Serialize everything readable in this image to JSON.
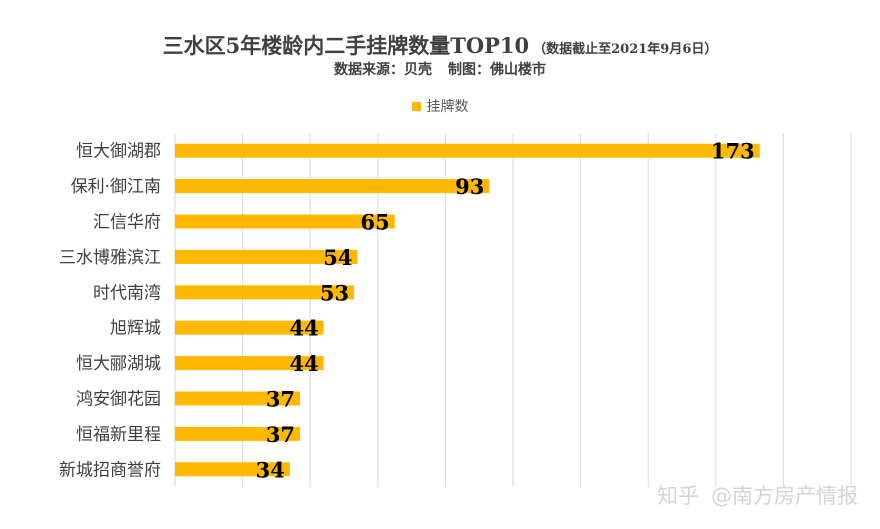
{
  "chart_data": {
    "type": "bar",
    "orientation": "horizontal",
    "title": "三水区5年楼龄内二手挂牌数量TOP10",
    "title_note": "（数据截止至2021年9月6日）",
    "subtitle": {
      "source": "数据来源：贝壳",
      "credit": "制图：佛山楼市"
    },
    "legend": [
      "挂牌数"
    ],
    "legend_position": "top-center",
    "categories": [
      "恒大御湖郡",
      "保利·御江南",
      "汇信华府",
      "三水博雅滨江",
      "时代南湾",
      "旭辉城",
      "恒大郦湖城",
      "鸿安御花园",
      "恒福新里程",
      "新城招商誉府"
    ],
    "series": [
      {
        "name": "挂牌数",
        "values": [
          173,
          93,
          65,
          54,
          53,
          44,
          44,
          37,
          37,
          34
        ]
      }
    ],
    "xlim": [
      0,
      200
    ],
    "x_gridlines": [
      0,
      20,
      40,
      60,
      80,
      100,
      120,
      140,
      160,
      180,
      200
    ],
    "grid": true,
    "xlabel": "",
    "ylabel": ""
  },
  "colors": {
    "bar": "#ffb800",
    "grid": "#d9d9d9",
    "label": "#000000",
    "category": "#404040"
  },
  "watermark": {
    "site": "知乎",
    "author": "@南方房产情报"
  }
}
